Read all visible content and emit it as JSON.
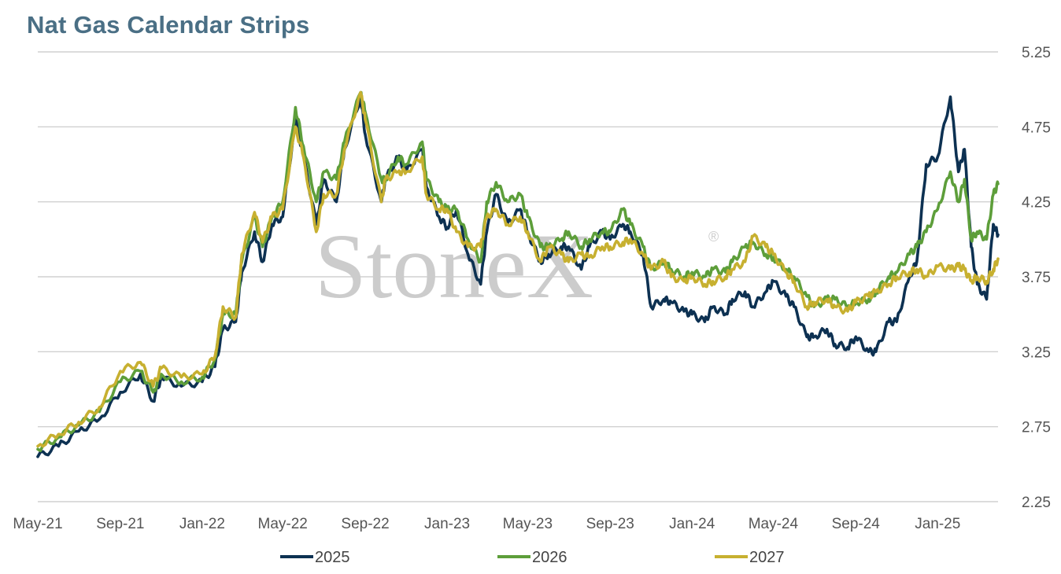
{
  "chart_data": {
    "type": "line",
    "title": "Nat Gas Calendar Strips",
    "watermark": "StoneX",
    "watermark_mark": "®",
    "x_start": "2021-05",
    "x_end": "2025-04",
    "x_ticks": [
      {
        "label": "May-21",
        "pos": "2021-05"
      },
      {
        "label": "Sep-21",
        "pos": "2021-09"
      },
      {
        "label": "Jan-22",
        "pos": "2022-01"
      },
      {
        "label": "May-22",
        "pos": "2022-05"
      },
      {
        "label": "Sep-22",
        "pos": "2022-09"
      },
      {
        "label": "Jan-23",
        "pos": "2023-01"
      },
      {
        "label": "May-23",
        "pos": "2023-05"
      },
      {
        "label": "Sep-23",
        "pos": "2023-09"
      },
      {
        "label": "Jan-24",
        "pos": "2024-01"
      },
      {
        "label": "May-24",
        "pos": "2024-05"
      },
      {
        "label": "Sep-24",
        "pos": "2024-09"
      },
      {
        "label": "Jan-25",
        "pos": "2025-01"
      }
    ],
    "y_ticks": [
      "5.25",
      "4.75",
      "4.25",
      "3.75",
      "3.25",
      "2.75",
      "2.25"
    ],
    "ylim": [
      2.25,
      5.25
    ],
    "y_axis_side": "right",
    "grid": true,
    "legend_position": "bottom",
    "series": [
      {
        "name": "2025",
        "color": "#0d3152",
        "points": [
          [
            "2021-05",
            2.55
          ],
          [
            "2021-06",
            2.62
          ],
          [
            "2021-07",
            2.72
          ],
          [
            "2021-08",
            2.8
          ],
          [
            "2021-09",
            2.98
          ],
          [
            "2021-10",
            3.1
          ],
          [
            "2021-10-20",
            2.92
          ],
          [
            "2021-11",
            3.08
          ],
          [
            "2021-12",
            3.02
          ],
          [
            "2022-01",
            3.05
          ],
          [
            "2022-01-20",
            3.15
          ],
          [
            "2022-02",
            3.4
          ],
          [
            "2022-02-20",
            3.45
          ],
          [
            "2022-03",
            3.78
          ],
          [
            "2022-03-20",
            4.05
          ],
          [
            "2022-04",
            3.85
          ],
          [
            "2022-04-15",
            4.1
          ],
          [
            "2022-05",
            4.15
          ],
          [
            "2022-05-20",
            4.8
          ],
          [
            "2022-06",
            4.55
          ],
          [
            "2022-06-20",
            4.1
          ],
          [
            "2022-07",
            4.4
          ],
          [
            "2022-07-20",
            4.25
          ],
          [
            "2022-08",
            4.6
          ],
          [
            "2022-08-25",
            4.95
          ],
          [
            "2022-09",
            4.7
          ],
          [
            "2022-09-25",
            4.25
          ],
          [
            "2022-10",
            4.4
          ],
          [
            "2022-10-20",
            4.55
          ],
          [
            "2022-11",
            4.45
          ],
          [
            "2022-11-25",
            4.6
          ],
          [
            "2022-12",
            4.35
          ],
          [
            "2022-12-20",
            4.15
          ],
          [
            "2023-01",
            4.08
          ],
          [
            "2023-01-15",
            4.2
          ],
          [
            "2023-02",
            3.9
          ],
          [
            "2023-02-20",
            3.7
          ],
          [
            "2023-03",
            4.05
          ],
          [
            "2023-03-15",
            4.3
          ],
          [
            "2023-04",
            4.1
          ],
          [
            "2023-04-20",
            4.2
          ],
          [
            "2023-05",
            4.05
          ],
          [
            "2023-05-20",
            3.85
          ],
          [
            "2023-06",
            3.9
          ],
          [
            "2023-06-20",
            3.95
          ],
          [
            "2023-07",
            3.95
          ],
          [
            "2023-07-20",
            3.8
          ],
          [
            "2023-08",
            3.95
          ],
          [
            "2023-08-20",
            4.05
          ],
          [
            "2023-09",
            4.0
          ],
          [
            "2023-09-20",
            4.1
          ],
          [
            "2023-10",
            4.05
          ],
          [
            "2023-10-20",
            3.9
          ],
          [
            "2023-11",
            3.55
          ],
          [
            "2023-11-20",
            3.6
          ],
          [
            "2023-12",
            3.58
          ],
          [
            "2023-12-20",
            3.52
          ],
          [
            "2024-01",
            3.5
          ],
          [
            "2024-01-20",
            3.45
          ],
          [
            "2024-02",
            3.55
          ],
          [
            "2024-02-20",
            3.5
          ],
          [
            "2024-03",
            3.6
          ],
          [
            "2024-03-20",
            3.65
          ],
          [
            "2024-04",
            3.55
          ],
          [
            "2024-04-20",
            3.65
          ],
          [
            "2024-05",
            3.72
          ],
          [
            "2024-05-20",
            3.62
          ],
          [
            "2024-06",
            3.55
          ],
          [
            "2024-06-20",
            3.35
          ],
          [
            "2024-07",
            3.35
          ],
          [
            "2024-07-20",
            3.4
          ],
          [
            "2024-08",
            3.3
          ],
          [
            "2024-08-20",
            3.28
          ],
          [
            "2024-09",
            3.35
          ],
          [
            "2024-09-20",
            3.25
          ],
          [
            "2024-10",
            3.25
          ],
          [
            "2024-10-20",
            3.45
          ],
          [
            "2024-11",
            3.45
          ],
          [
            "2024-11-20",
            3.75
          ],
          [
            "2024-12",
            3.85
          ],
          [
            "2024-12-15",
            4.5
          ],
          [
            "2025-01",
            4.55
          ],
          [
            "2025-01-20",
            4.95
          ],
          [
            "2025-02",
            4.45
          ],
          [
            "2025-02-10",
            4.6
          ],
          [
            "2025-02-20",
            3.95
          ],
          [
            "2025-03",
            3.7
          ],
          [
            "2025-03-15",
            3.6
          ],
          [
            "2025-03-25",
            4.1
          ],
          [
            "2025-04",
            4.03
          ]
        ]
      },
      {
        "name": "2026",
        "color": "#5d9e3a",
        "points": [
          [
            "2021-05",
            2.6
          ],
          [
            "2021-06",
            2.68
          ],
          [
            "2021-07",
            2.76
          ],
          [
            "2021-08",
            2.85
          ],
          [
            "2021-09",
            3.05
          ],
          [
            "2021-10",
            3.12
          ],
          [
            "2021-10-20",
            2.98
          ],
          [
            "2021-11",
            3.1
          ],
          [
            "2021-12",
            3.05
          ],
          [
            "2022-01",
            3.08
          ],
          [
            "2022-01-20",
            3.2
          ],
          [
            "2022-02",
            3.5
          ],
          [
            "2022-02-20",
            3.5
          ],
          [
            "2022-03",
            3.85
          ],
          [
            "2022-03-20",
            4.15
          ],
          [
            "2022-04",
            3.95
          ],
          [
            "2022-04-15",
            4.15
          ],
          [
            "2022-05",
            4.25
          ],
          [
            "2022-05-20",
            4.88
          ],
          [
            "2022-06",
            4.62
          ],
          [
            "2022-06-20",
            4.25
          ],
          [
            "2022-07",
            4.45
          ],
          [
            "2022-07-20",
            4.4
          ],
          [
            "2022-08",
            4.65
          ],
          [
            "2022-08-25",
            4.98
          ],
          [
            "2022-09",
            4.85
          ],
          [
            "2022-09-25",
            4.4
          ],
          [
            "2022-10",
            4.4
          ],
          [
            "2022-10-20",
            4.55
          ],
          [
            "2022-11",
            4.5
          ],
          [
            "2022-11-25",
            4.65
          ],
          [
            "2022-12",
            4.4
          ],
          [
            "2022-12-20",
            4.25
          ],
          [
            "2023-01",
            4.2
          ],
          [
            "2023-01-15",
            4.2
          ],
          [
            "2023-02",
            4.0
          ],
          [
            "2023-02-20",
            3.85
          ],
          [
            "2023-03",
            4.25
          ],
          [
            "2023-03-15",
            4.38
          ],
          [
            "2023-04",
            4.25
          ],
          [
            "2023-04-20",
            4.3
          ],
          [
            "2023-05",
            4.15
          ],
          [
            "2023-05-20",
            3.95
          ],
          [
            "2023-06",
            3.95
          ],
          [
            "2023-06-20",
            4.0
          ],
          [
            "2023-07",
            4.05
          ],
          [
            "2023-07-20",
            3.95
          ],
          [
            "2023-08",
            4.0
          ],
          [
            "2023-08-20",
            4.05
          ],
          [
            "2023-09",
            4.05
          ],
          [
            "2023-09-20",
            4.2
          ],
          [
            "2023-10",
            4.1
          ],
          [
            "2023-10-20",
            3.95
          ],
          [
            "2023-11",
            3.8
          ],
          [
            "2023-11-20",
            3.85
          ],
          [
            "2023-12",
            3.8
          ],
          [
            "2023-12-20",
            3.75
          ],
          [
            "2024-01",
            3.78
          ],
          [
            "2024-01-20",
            3.75
          ],
          [
            "2024-02",
            3.8
          ],
          [
            "2024-02-20",
            3.78
          ],
          [
            "2024-03",
            3.85
          ],
          [
            "2024-03-20",
            3.95
          ],
          [
            "2024-04",
            3.98
          ],
          [
            "2024-04-20",
            3.9
          ],
          [
            "2024-05",
            3.88
          ],
          [
            "2024-05-20",
            3.8
          ],
          [
            "2024-06",
            3.75
          ],
          [
            "2024-06-20",
            3.62
          ],
          [
            "2024-07",
            3.55
          ],
          [
            "2024-07-20",
            3.6
          ],
          [
            "2024-08",
            3.6
          ],
          [
            "2024-08-20",
            3.55
          ],
          [
            "2024-09",
            3.58
          ],
          [
            "2024-09-20",
            3.6
          ],
          [
            "2024-10",
            3.65
          ],
          [
            "2024-10-20",
            3.75
          ],
          [
            "2024-11",
            3.78
          ],
          [
            "2024-11-20",
            3.9
          ],
          [
            "2024-12",
            3.95
          ],
          [
            "2024-12-15",
            4.05
          ],
          [
            "2025-01",
            4.2
          ],
          [
            "2025-01-20",
            4.45
          ],
          [
            "2025-02",
            4.25
          ],
          [
            "2025-02-10",
            4.4
          ],
          [
            "2025-02-20",
            4.0
          ],
          [
            "2025-03",
            4.05
          ],
          [
            "2025-03-15",
            4.0
          ],
          [
            "2025-03-25",
            4.3
          ],
          [
            "2025-04",
            4.37
          ]
        ]
      },
      {
        "name": "2027",
        "color": "#c7b030",
        "points": [
          [
            "2021-05",
            2.62
          ],
          [
            "2021-06",
            2.7
          ],
          [
            "2021-07",
            2.78
          ],
          [
            "2021-08",
            2.88
          ],
          [
            "2021-09",
            3.12
          ],
          [
            "2021-10",
            3.18
          ],
          [
            "2021-10-20",
            3.02
          ],
          [
            "2021-11",
            3.14
          ],
          [
            "2021-12",
            3.08
          ],
          [
            "2022-01",
            3.1
          ],
          [
            "2022-01-20",
            3.22
          ],
          [
            "2022-02",
            3.55
          ],
          [
            "2022-02-20",
            3.48
          ],
          [
            "2022-03",
            3.9
          ],
          [
            "2022-03-20",
            4.18
          ],
          [
            "2022-04",
            3.98
          ],
          [
            "2022-04-15",
            4.15
          ],
          [
            "2022-05",
            4.2
          ],
          [
            "2022-05-20",
            4.75
          ],
          [
            "2022-06",
            4.55
          ],
          [
            "2022-06-20",
            4.05
          ],
          [
            "2022-07",
            4.3
          ],
          [
            "2022-07-20",
            4.3
          ],
          [
            "2022-08",
            4.6
          ],
          [
            "2022-08-25",
            4.98
          ],
          [
            "2022-09",
            4.8
          ],
          [
            "2022-09-25",
            4.25
          ],
          [
            "2022-10",
            4.4
          ],
          [
            "2022-10-20",
            4.45
          ],
          [
            "2022-11",
            4.45
          ],
          [
            "2022-11-25",
            4.55
          ],
          [
            "2022-12",
            4.3
          ],
          [
            "2022-12-20",
            4.2
          ],
          [
            "2023-01",
            4.2
          ],
          [
            "2023-01-15",
            4.05
          ],
          [
            "2023-02",
            3.95
          ],
          [
            "2023-02-20",
            3.95
          ],
          [
            "2023-03",
            4.15
          ],
          [
            "2023-03-15",
            4.2
          ],
          [
            "2023-04",
            4.1
          ],
          [
            "2023-04-20",
            4.15
          ],
          [
            "2023-05",
            4.05
          ],
          [
            "2023-05-20",
            3.85
          ],
          [
            "2023-06",
            3.95
          ],
          [
            "2023-06-20",
            3.9
          ],
          [
            "2023-07",
            3.85
          ],
          [
            "2023-07-20",
            3.9
          ],
          [
            "2023-08",
            3.88
          ],
          [
            "2023-08-20",
            3.95
          ],
          [
            "2023-09",
            3.95
          ],
          [
            "2023-09-20",
            3.98
          ],
          [
            "2023-10",
            4.0
          ],
          [
            "2023-10-20",
            3.9
          ],
          [
            "2023-11",
            3.8
          ],
          [
            "2023-11-20",
            3.85
          ],
          [
            "2023-12",
            3.75
          ],
          [
            "2023-12-20",
            3.72
          ],
          [
            "2024-01",
            3.75
          ],
          [
            "2024-01-20",
            3.7
          ],
          [
            "2024-02",
            3.72
          ],
          [
            "2024-02-20",
            3.75
          ],
          [
            "2024-03",
            3.8
          ],
          [
            "2024-03-20",
            3.85
          ],
          [
            "2024-04",
            4.02
          ],
          [
            "2024-04-20",
            3.95
          ],
          [
            "2024-05",
            3.9
          ],
          [
            "2024-05-20",
            3.78
          ],
          [
            "2024-06",
            3.72
          ],
          [
            "2024-06-20",
            3.55
          ],
          [
            "2024-07",
            3.58
          ],
          [
            "2024-07-20",
            3.6
          ],
          [
            "2024-08",
            3.55
          ],
          [
            "2024-08-20",
            3.52
          ],
          [
            "2024-09",
            3.58
          ],
          [
            "2024-09-20",
            3.62
          ],
          [
            "2024-10",
            3.65
          ],
          [
            "2024-10-20",
            3.7
          ],
          [
            "2024-11",
            3.75
          ],
          [
            "2024-11-20",
            3.78
          ],
          [
            "2024-12",
            3.8
          ],
          [
            "2024-12-15",
            3.75
          ],
          [
            "2025-01",
            3.82
          ],
          [
            "2025-01-20",
            3.8
          ],
          [
            "2025-02",
            3.82
          ],
          [
            "2025-02-10",
            3.8
          ],
          [
            "2025-02-20",
            3.72
          ],
          [
            "2025-03",
            3.75
          ],
          [
            "2025-03-15",
            3.72
          ],
          [
            "2025-03-25",
            3.8
          ],
          [
            "2025-04",
            3.87
          ]
        ]
      }
    ]
  }
}
